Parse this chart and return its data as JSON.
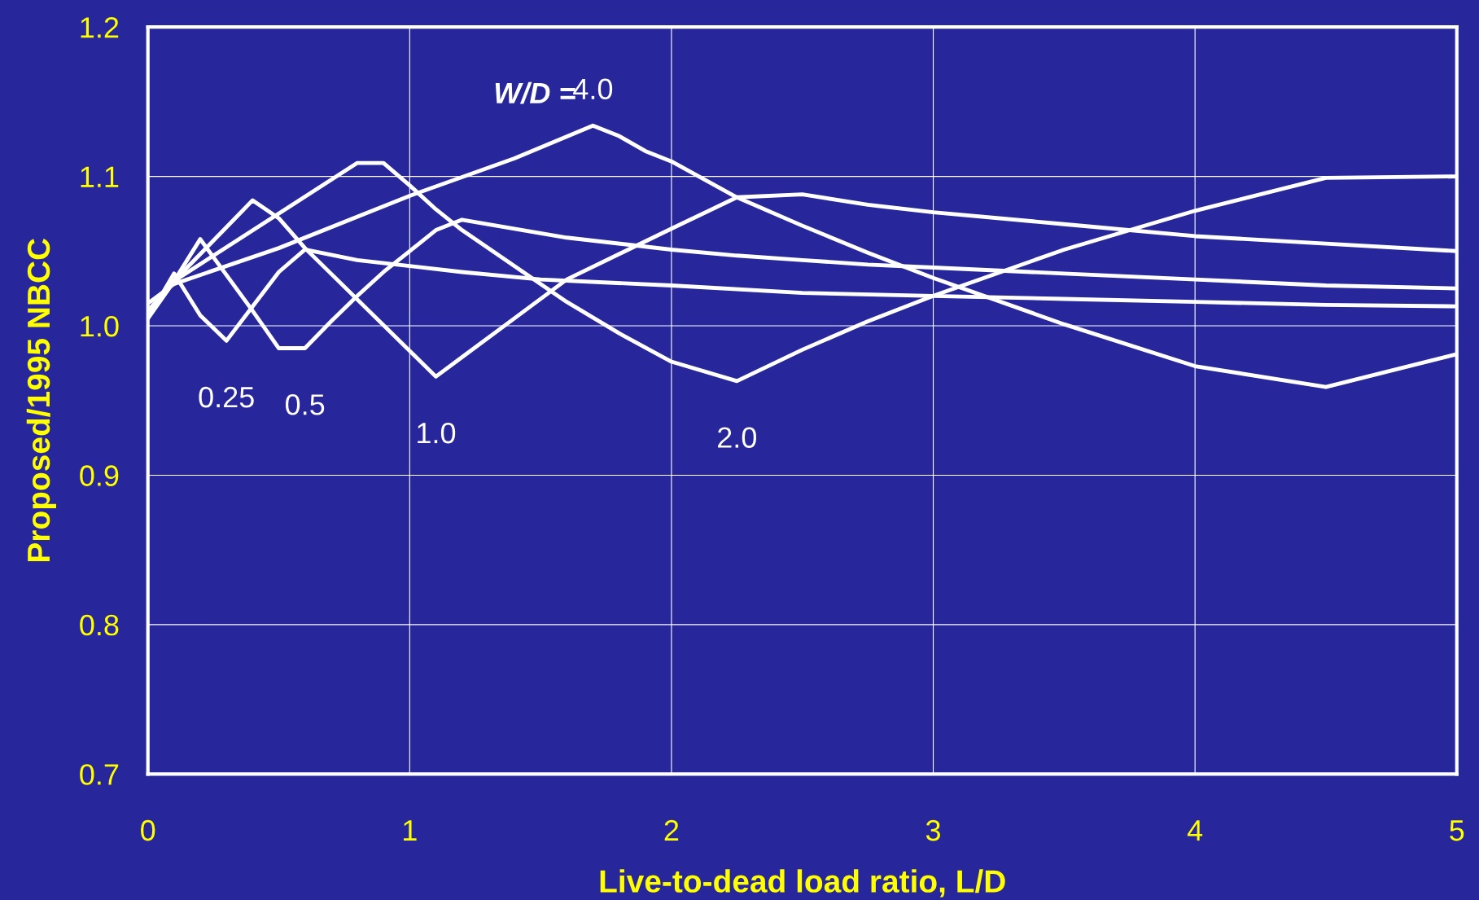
{
  "chart_data": {
    "type": "line",
    "xlabel": "Live-to-dead load ratio, L/D",
    "ylabel": "Proposed/1995 NBCC",
    "xlim": [
      0,
      5
    ],
    "ylim": [
      0.7,
      1.2
    ],
    "xticks": [
      0,
      1,
      2,
      3,
      4,
      5
    ],
    "yticks": [
      0.7,
      0.8,
      0.9,
      {
        "value": 1.0,
        "label": "1.0"
      },
      1.1,
      1.2
    ],
    "grid": true,
    "legend": false,
    "marker": "none",
    "line_style": "solid",
    "annotations": [
      "W/D ="
    ],
    "series": [
      {
        "name": "0.25",
        "color": "#ffffff",
        "x": [
          0,
          0.1,
          0.2,
          0.3,
          0.4,
          0.5,
          0.6,
          0.8,
          1.0,
          1.2,
          1.5,
          2,
          2.5,
          3,
          3.5,
          4,
          4.5,
          5
        ],
        "values": [
          1.005,
          1.035,
          1.007,
          0.99,
          1.013,
          1.036,
          1.051,
          1.044,
          1.04,
          1.036,
          1.031,
          1.027,
          1.022,
          1.02,
          1.018,
          1.016,
          1.014,
          1.013
        ]
      },
      {
        "name": "0.5",
        "color": "#ffffff",
        "x": [
          0,
          0.1,
          0.2,
          0.3,
          0.4,
          0.5,
          0.6,
          0.7,
          0.8,
          0.9,
          1.0,
          1.1,
          1.2,
          1.6,
          2,
          2.25,
          2.5,
          2.75,
          3,
          3.5,
          4,
          4.5,
          5
        ],
        "values": [
          1.005,
          1.03,
          1.058,
          1.034,
          1.01,
          0.985,
          0.985,
          1.003,
          1.02,
          1.036,
          1.05,
          1.064,
          1.071,
          1.059,
          1.051,
          1.047,
          1.044,
          1.041,
          1.039,
          1.035,
          1.031,
          1.027,
          1.025
        ]
      },
      {
        "name": "1.0",
        "color": "#ffffff",
        "x": [
          0,
          0.1,
          0.2,
          0.3,
          0.4,
          0.5,
          0.6,
          1.1,
          1.2,
          1.4,
          1.6,
          2,
          2.25,
          2.5,
          2.75,
          3,
          3.5,
          4,
          4.5,
          5
        ],
        "values": [
          1.005,
          1.03,
          1.048,
          1.066,
          1.084,
          1.072,
          1.052,
          0.966,
          0.979,
          1.005,
          1.031,
          1.065,
          1.086,
          1.088,
          1.081,
          1.076,
          1.068,
          1.06,
          1.055,
          1.05
        ]
      },
      {
        "name": "2.0",
        "color": "#ffffff",
        "x": [
          0,
          0.1,
          0.8,
          0.9,
          1.0,
          1.1,
          1.2,
          1.6,
          1.8,
          2,
          2.25,
          2.5,
          2.75,
          3,
          3.5,
          4,
          4.5,
          5
        ],
        "values": [
          1.01,
          1.03,
          1.109,
          1.109,
          1.094,
          1.078,
          1.064,
          1.016,
          0.995,
          0.976,
          0.963,
          0.984,
          1.003,
          1.02,
          1.051,
          1.077,
          1.099,
          1.1
        ]
      },
      {
        "name": "4.0",
        "color": "#ffffff",
        "x": [
          0,
          0.1,
          0.5,
          1.0,
          1.4,
          1.7,
          1.8,
          1.9,
          2,
          2.25,
          2.5,
          2.75,
          3,
          3.5,
          4,
          4.5,
          5
        ],
        "values": [
          1.015,
          1.028,
          1.052,
          1.087,
          1.112,
          1.134,
          1.127,
          1.117,
          1.11,
          1.086,
          1.067,
          1.049,
          1.032,
          1.001,
          0.973,
          0.959,
          0.981
        ]
      }
    ]
  }
}
